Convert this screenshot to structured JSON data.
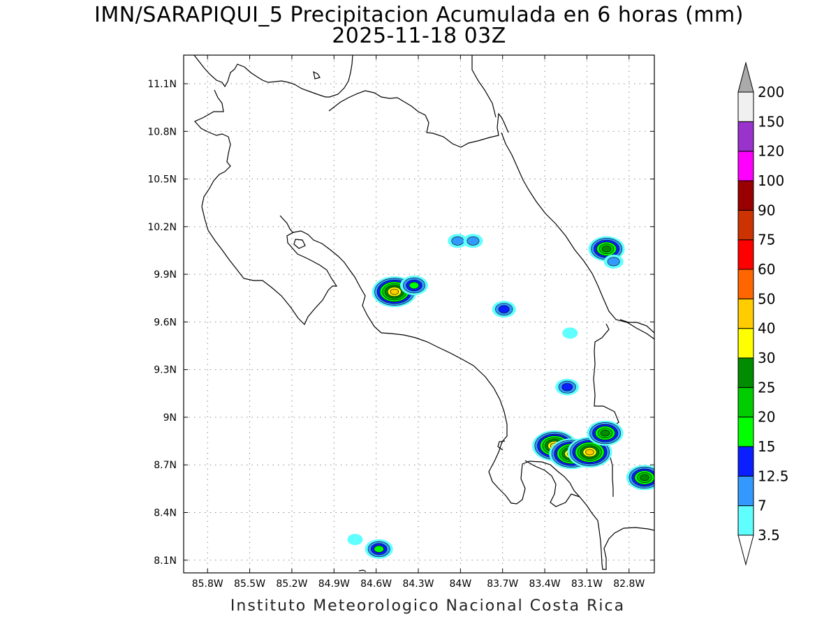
{
  "title": {
    "line1": "IMN/SARAPIQUI_5 Precipitacion Acumulada en 6 horas (mm)",
    "line2": "2025-11-18 03Z"
  },
  "footer": "Instituto Meteorologico Nacional Costa Rica",
  "map": {
    "lon_range": [
      -85.97,
      -82.62
    ],
    "lat_range": [
      8.02,
      11.28
    ],
    "lon_ticks": [
      {
        "v": -85.8,
        "label": "85.8W"
      },
      {
        "v": -85.5,
        "label": "85.5W"
      },
      {
        "v": -85.2,
        "label": "85.2W"
      },
      {
        "v": -84.9,
        "label": "84.9W"
      },
      {
        "v": -84.6,
        "label": "84.6W"
      },
      {
        "v": -84.3,
        "label": "84.3W"
      },
      {
        "v": -84.0,
        "label": "84W"
      },
      {
        "v": -83.7,
        "label": "83.7W"
      },
      {
        "v": -83.4,
        "label": "83.4W"
      },
      {
        "v": -83.1,
        "label": "83.1W"
      },
      {
        "v": -82.8,
        "label": "82.8W"
      }
    ],
    "lat_ticks": [
      {
        "v": 8.1,
        "label": "8.1N"
      },
      {
        "v": 8.4,
        "label": "8.4N"
      },
      {
        "v": 8.7,
        "label": "8.7N"
      },
      {
        "v": 9.0,
        "label": "9N"
      },
      {
        "v": 9.3,
        "label": "9.3N"
      },
      {
        "v": 9.6,
        "label": "9.6N"
      },
      {
        "v": 9.9,
        "label": "9.9N"
      },
      {
        "v": 10.2,
        "label": "10.2N"
      },
      {
        "v": 10.5,
        "label": "10.5N"
      },
      {
        "v": 10.8,
        "label": "10.8N"
      },
      {
        "v": 11.1,
        "label": "11.1N"
      }
    ],
    "precip_cells": [
      {
        "lon": -84.47,
        "lat": 9.79,
        "max_mm": 40
      },
      {
        "lon": -84.33,
        "lat": 9.83,
        "max_mm": 15
      },
      {
        "lon": -84.02,
        "lat": 10.11,
        "max_mm": 7
      },
      {
        "lon": -83.91,
        "lat": 10.11,
        "max_mm": 7
      },
      {
        "lon": -83.69,
        "lat": 9.68,
        "max_mm": 12.5
      },
      {
        "lon": -82.96,
        "lat": 10.06,
        "max_mm": 25
      },
      {
        "lon": -82.91,
        "lat": 9.98,
        "max_mm": 7
      },
      {
        "lon": -83.24,
        "lat": 9.19,
        "max_mm": 12.5
      },
      {
        "lon": -83.22,
        "lat": 9.53,
        "max_mm": 3.5
      },
      {
        "lon": -83.33,
        "lat": 8.82,
        "max_mm": 40
      },
      {
        "lon": -83.21,
        "lat": 8.77,
        "max_mm": 40
      },
      {
        "lon": -83.08,
        "lat": 8.78,
        "max_mm": 40
      },
      {
        "lon": -82.97,
        "lat": 8.9,
        "max_mm": 25
      },
      {
        "lon": -82.69,
        "lat": 8.62,
        "max_mm": 25
      },
      {
        "lon": -84.58,
        "lat": 8.17,
        "max_mm": 15
      },
      {
        "lon": -84.75,
        "lat": 8.23,
        "max_mm": 3.5
      }
    ]
  },
  "colorbar": {
    "levels": [
      "3.5",
      "7",
      "12.5",
      "15",
      "20",
      "25",
      "30",
      "40",
      "50",
      "60",
      "75",
      "90",
      "100",
      "120",
      "150",
      "200"
    ],
    "colors": [
      "#5fffff",
      "#3399ff",
      "#0a1eff",
      "#00ff00",
      "#00cc00",
      "#008c00",
      "#ffff00",
      "#ffcc00",
      "#ff6600",
      "#ff0000",
      "#cc3300",
      "#990000",
      "#ff00ff",
      "#9933cc",
      "#f0f0f0",
      "#aaaaaa"
    ],
    "under_color": "#ffffff",
    "over_color": "#aaaaaa"
  }
}
